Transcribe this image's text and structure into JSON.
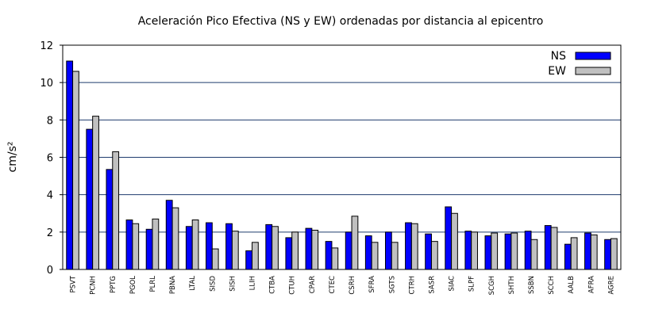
{
  "chart_data": {
    "type": "bar",
    "title": "Aceleración Pico Efectiva (NS y EW) ordenadas por distancia al epicentro",
    "xlabel": "",
    "ylabel": "cm/s²",
    "ylim": [
      0,
      12
    ],
    "yticks": [
      0,
      2,
      4,
      6,
      8,
      10,
      12
    ],
    "grid": true,
    "legend_position": "top-right",
    "categories": [
      "PSVT",
      "PCNH",
      "PPTG",
      "PGOL",
      "PLRL",
      "PBNA",
      "LTAL",
      "SISD",
      "SISH",
      "LLIH",
      "CTBA",
      "CTUH",
      "CPAR",
      "CTEC",
      "CSRH",
      "SFRA",
      "SGTS",
      "CTRH",
      "SASR",
      "SIAC",
      "SLPF",
      "SCGH",
      "SHTH",
      "SSBN",
      "SCCH",
      "AALB",
      "AFRA",
      "AGRE"
    ],
    "series": [
      {
        "name": "NS",
        "color": "#0000ff",
        "values": [
          11.15,
          7.5,
          5.35,
          2.65,
          2.15,
          3.7,
          2.3,
          2.5,
          2.45,
          1.0,
          2.4,
          1.7,
          2.2,
          1.5,
          2.0,
          1.8,
          2.0,
          2.5,
          1.9,
          3.35,
          2.05,
          1.8,
          1.9,
          2.05,
          2.35,
          1.35,
          1.95,
          1.6
        ]
      },
      {
        "name": "EW",
        "color": "#c0c0c0",
        "values": [
          10.6,
          8.2,
          6.3,
          2.45,
          2.7,
          3.3,
          2.65,
          1.1,
          2.05,
          1.45,
          2.3,
          2.0,
          2.1,
          1.15,
          2.85,
          1.45,
          1.45,
          2.45,
          1.5,
          3.0,
          2.0,
          1.95,
          1.95,
          1.6,
          2.25,
          1.7,
          1.85,
          1.65
        ]
      }
    ]
  }
}
